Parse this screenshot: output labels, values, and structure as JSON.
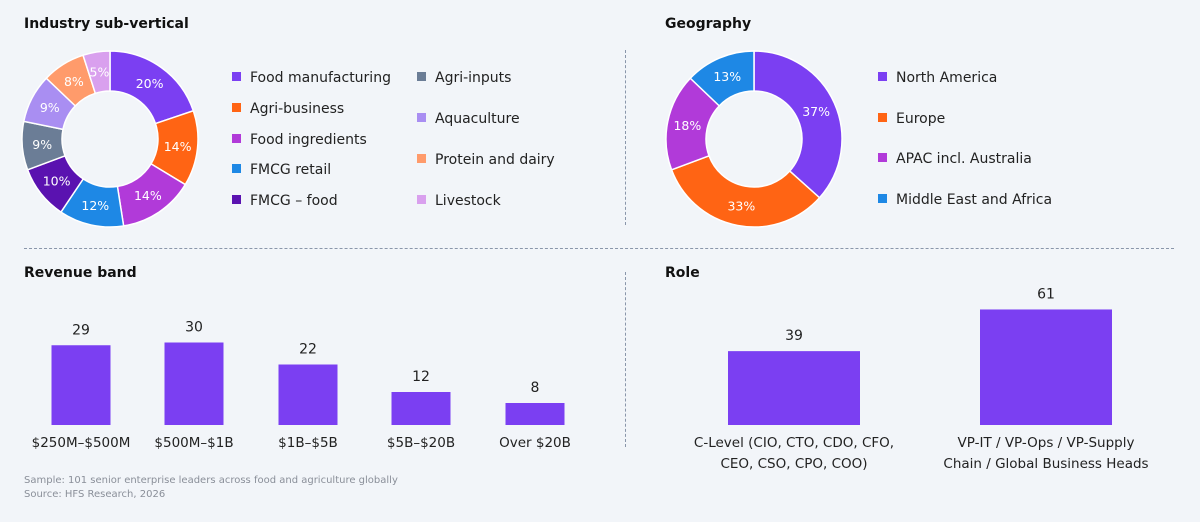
{
  "chart_data": [
    {
      "type": "pie",
      "title": "Industry sub-vertical",
      "categories": [
        "Food manufacturing",
        "Agri-business",
        "Food ingredients",
        "FMCG retail",
        "FMCG – food",
        "Agri-inputs",
        "Aquaculture",
        "Protein and dairy",
        "Livestock"
      ],
      "values": [
        20,
        14,
        14,
        12,
        10,
        9,
        9,
        8,
        5
      ],
      "labels": [
        "20%",
        "14%",
        "14%",
        "12%",
        "10%",
        "9%",
        "9%",
        "8%",
        "5%"
      ],
      "colors": [
        "#7b3ff2",
        "#ff6414",
        "#b13ad9",
        "#1e88e5",
        "#5a12b0",
        "#6b7d96",
        "#a98ef2",
        "#ff9b6b",
        "#d9a0ee"
      ],
      "legend": "right"
    },
    {
      "type": "pie",
      "title": "Geography",
      "categories": [
        "North America",
        "Europe",
        "APAC incl. Australia",
        "Middle East and Africa"
      ],
      "values": [
        37,
        33,
        18,
        13
      ],
      "labels": [
        "37%",
        "33%",
        "18%",
        "13%"
      ],
      "colors": [
        "#7b3ff2",
        "#ff6414",
        "#b13ad9",
        "#1e88e5"
      ],
      "legend": "right"
    },
    {
      "type": "bar",
      "title": "Revenue band",
      "categories": [
        "$250M–$500M",
        "$500M–$1B",
        "$1B–$5B",
        "$5B–$20B",
        "Over $20B"
      ],
      "values": [
        29,
        30,
        22,
        12,
        8
      ],
      "color": "#7b3ff2",
      "ylim": [
        0,
        32
      ]
    },
    {
      "type": "bar",
      "title": "Role",
      "categories": [
        [
          "C-Level (CIO, CTO, CDO, CFO,",
          "CEO, CSO, CPO, COO)"
        ],
        [
          "VP-IT / VP-Ops / VP-Supply",
          "Chain / Global Business Heads"
        ]
      ],
      "values": [
        39,
        61
      ],
      "color": "#7b3ff2",
      "ylim": [
        0,
        66
      ]
    }
  ],
  "footer": {
    "sample": "Sample: 101 senior enterprise leaders across food and agriculture globally",
    "source": "Source: HFS Research, 2026"
  }
}
